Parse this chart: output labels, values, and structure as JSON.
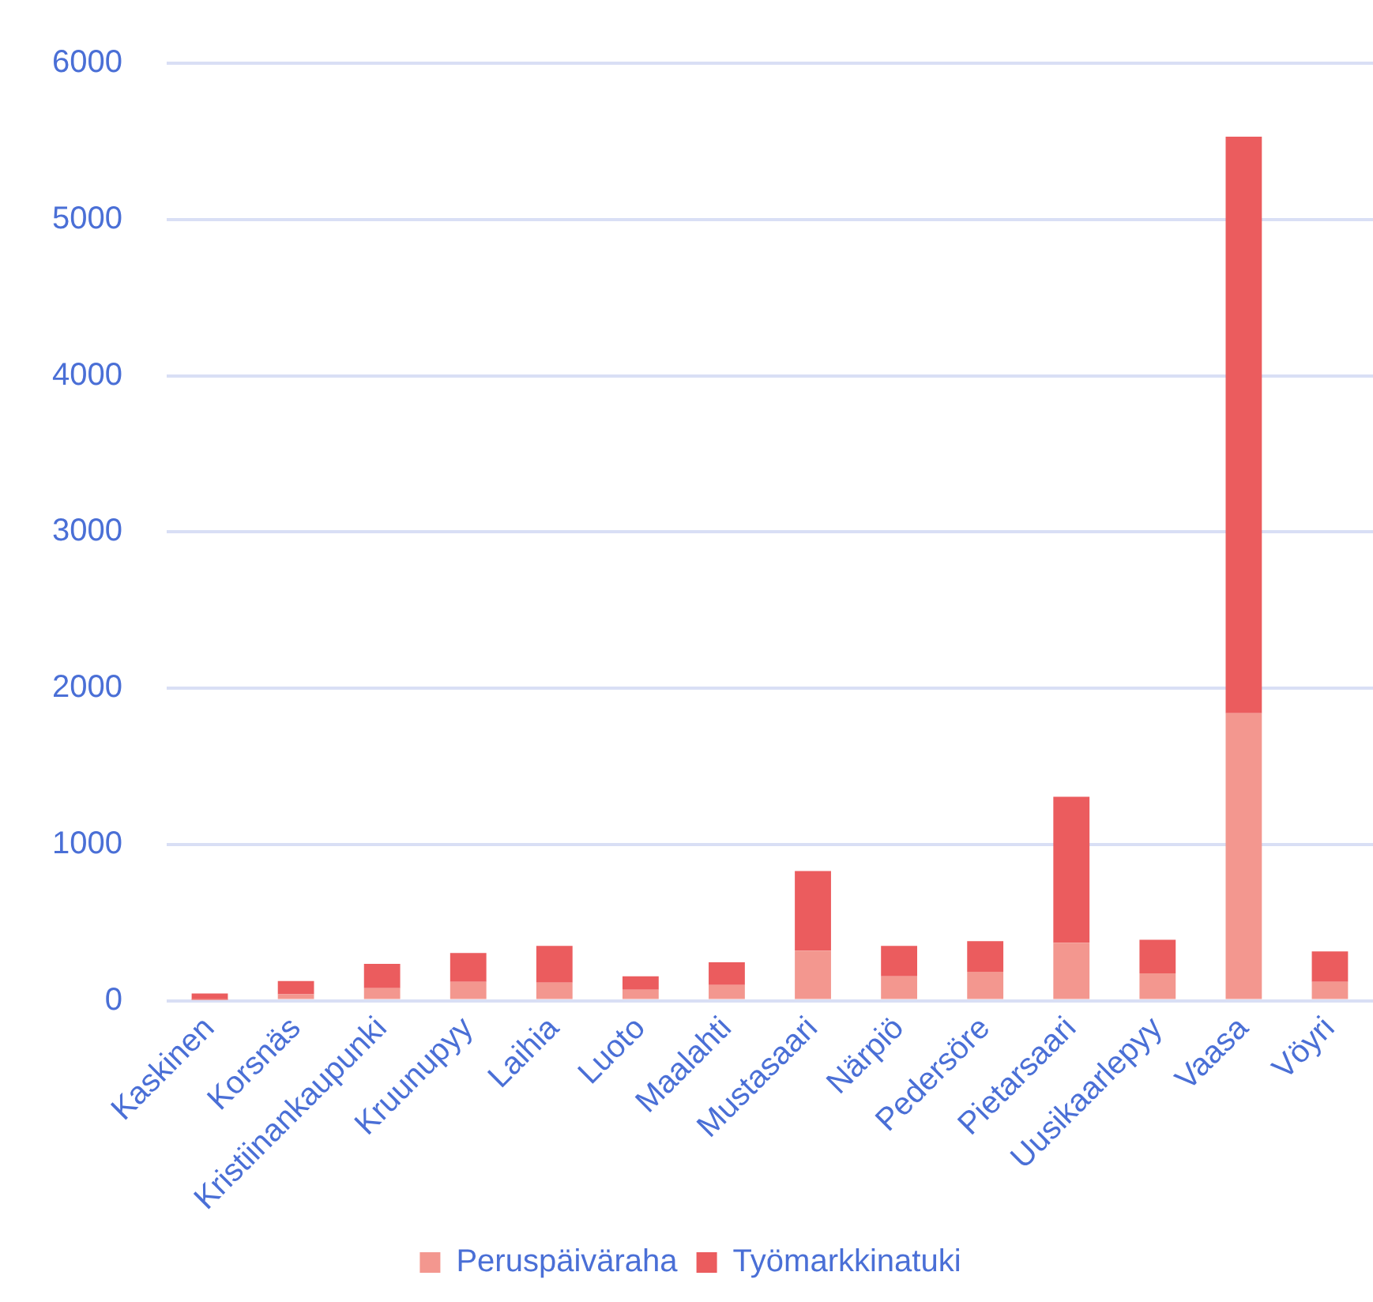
{
  "chart_data": {
    "type": "bar",
    "stacked": true,
    "categories": [
      "Kaskinen",
      "Korsnäs",
      "Kristiinankaupunki",
      "Kruunupyy",
      "Laihia",
      "Luoto",
      "Maalahti",
      "Mustasaari",
      "Närpiö",
      "Pedersöre",
      "Pietarsaari",
      "Uusikaarlepyy",
      "Vaasa",
      "Vöyri"
    ],
    "series": [
      {
        "name": "Peruspäiväraha",
        "color": "#f3978f",
        "values": [
          5,
          40,
          80,
          120,
          115,
          70,
          100,
          320,
          155,
          185,
          370,
          175,
          1840,
          120
        ]
      },
      {
        "name": "Työmarkkinatuki",
        "color": "#eb5c5e",
        "values": [
          40,
          85,
          155,
          185,
          235,
          85,
          145,
          510,
          195,
          195,
          935,
          215,
          3690,
          195
        ]
      }
    ],
    "ylim": [
      0,
      6000
    ],
    "yticks": [
      0,
      1000,
      2000,
      3000,
      4000,
      5000,
      6000
    ],
    "grid": "y",
    "legend": "bottom"
  }
}
